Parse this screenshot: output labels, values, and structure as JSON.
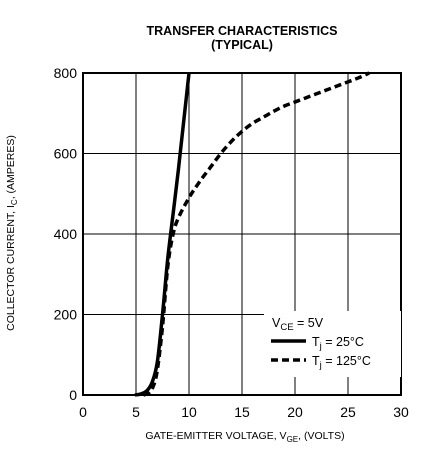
{
  "chart_data": {
    "type": "line",
    "title": "TRANSFER CHARACTERISTICS",
    "subtitle": "(TYPICAL)",
    "xlabel": {
      "main": "GATE-EMITTER VOLTAGE, V",
      "sub": "GE",
      "tail": ", (VOLTS)"
    },
    "ylabel": {
      "main": "COLLECTOR CURRENT, I",
      "sub": "C",
      "tail": ", (AMPERES)"
    },
    "xlim": [
      0,
      30
    ],
    "ylim": [
      0,
      800
    ],
    "xticks": [
      "0",
      "5",
      "10",
      "15",
      "20",
      "25",
      "30"
    ],
    "yticks": [
      "0",
      "200",
      "400",
      "600",
      "800"
    ],
    "grid": true,
    "legend": {
      "placement": "bottom-right",
      "condition": {
        "main": "V",
        "sub": "CE",
        "tail": " = 5V"
      },
      "entries": [
        {
          "main": "T",
          "sub": "j",
          "tail": " = 25°C"
        },
        {
          "main": "T",
          "sub": "j",
          "tail": " = 125°C"
        }
      ]
    },
    "series": [
      {
        "line_style": "solid",
        "color": "#000000",
        "points": [
          [
            4.9,
            0
          ],
          [
            5.5,
            3
          ],
          [
            6,
            10
          ],
          [
            6.5,
            30
          ],
          [
            7,
            80
          ],
          [
            7.5,
            200
          ],
          [
            8,
            340
          ],
          [
            8.5,
            450
          ],
          [
            9,
            560
          ],
          [
            9.5,
            680
          ],
          [
            10,
            800
          ]
        ]
      },
      {
        "line_style": "dashed",
        "color": "#000000",
        "points": [
          [
            5.7,
            0
          ],
          [
            6.2,
            5
          ],
          [
            6.6,
            20
          ],
          [
            7,
            60
          ],
          [
            7.5,
            170
          ],
          [
            8,
            320
          ],
          [
            8.5,
            400
          ],
          [
            9,
            440
          ],
          [
            10,
            490
          ],
          [
            11,
            530
          ],
          [
            12,
            565
          ],
          [
            13,
            600
          ],
          [
            14,
            630
          ],
          [
            15,
            655
          ],
          [
            16,
            675
          ],
          [
            17,
            690
          ],
          [
            18,
            705
          ],
          [
            19,
            718
          ],
          [
            20,
            728
          ],
          [
            21,
            738
          ],
          [
            22,
            748
          ],
          [
            23,
            758
          ],
          [
            24,
            768
          ],
          [
            25,
            778
          ],
          [
            26,
            788
          ],
          [
            27,
            800
          ]
        ]
      }
    ]
  }
}
